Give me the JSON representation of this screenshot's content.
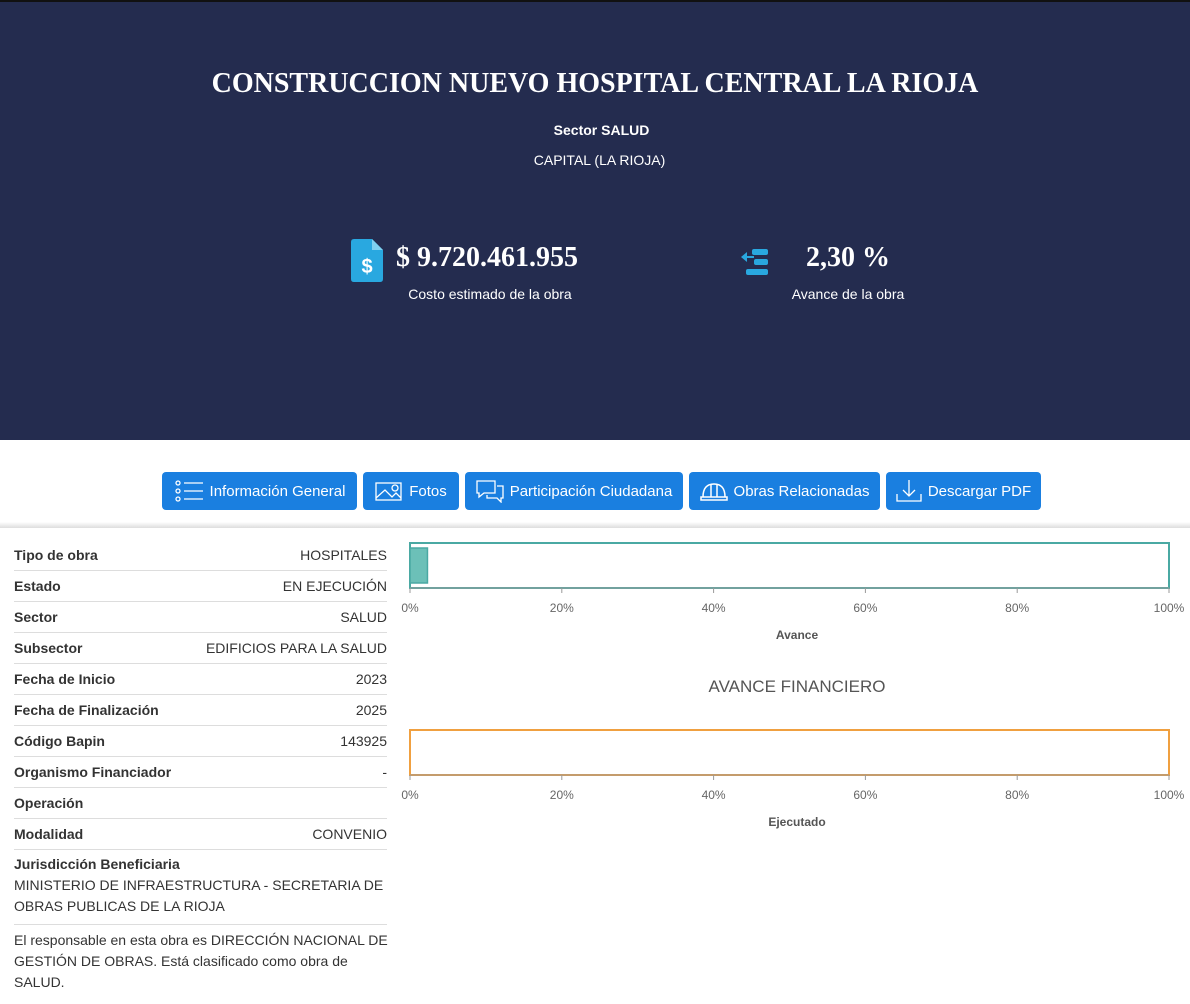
{
  "header": {
    "title": "CONSTRUCCION NUEVO HOSPITAL CENTRAL LA RIOJA",
    "sector": "Sector SALUD",
    "location": "CAPITAL (LA RIOJA)"
  },
  "stats": [
    {
      "value": "$ 9.720.461.955",
      "label": "Costo estimado de la obra"
    },
    {
      "value": "2,30 %",
      "label": "Avance de la obra"
    }
  ],
  "tabs": [
    "Información General",
    "Fotos",
    "Participación Ciudadana",
    "Obras Relacionadas",
    "Descargar PDF"
  ],
  "table": {
    "rows": [
      {
        "label": "Tipo de obra",
        "value": "HOSPITALES"
      },
      {
        "label": "Estado",
        "value": "EN EJECUCIÓN"
      },
      {
        "label": "Sector",
        "value": "SALUD"
      },
      {
        "label": "Subsector",
        "value": "EDIFICIOS PARA LA SALUD"
      },
      {
        "label": "Fecha de Inicio",
        "value": "2023"
      },
      {
        "label": "Fecha de Finalización",
        "value": "2025"
      },
      {
        "label": "Código Bapin",
        "value": "143925"
      },
      {
        "label": "Organismo Financiador",
        "value": "-"
      },
      {
        "label": "Operación"
      },
      {
        "label": "Modalidad",
        "value": "CONVENIO"
      }
    ],
    "jurisdiction": {
      "label": "Jurisdicción Beneficiaria",
      "value": "MINISTERIO DE INFRAESTRUCTURA - SECRETARIA DE OBRAS PUBLICAS DE LA RIOJA"
    },
    "note": "El responsable en esta obra es DIRECCIÓN NACIONAL DE GESTIÓN DE OBRAS. Está clasificado como obra de SALUD."
  },
  "chart_data": [
    {
      "type": "bar",
      "orientation": "horizontal",
      "xlabel": "Avance",
      "values": [
        2.3
      ],
      "color": "#6cc0b8",
      "border_color": "#4aa9a3",
      "xlim": [
        0,
        100
      ],
      "xticks": [
        {
          "value": 0,
          "label": "0%"
        },
        {
          "value": 20,
          "label": "20%"
        },
        {
          "value": 40,
          "label": "40%"
        },
        {
          "value": 60,
          "label": "60%"
        },
        {
          "value": 80,
          "label": "80%"
        },
        {
          "value": 100,
          "label": "100%"
        }
      ]
    },
    {
      "type": "bar",
      "orientation": "horizontal",
      "title": "AVANCE FINANCIERO",
      "xlabel": "Ejecutado",
      "values": [
        0
      ],
      "color": "#f5c07a",
      "border_color": "#f0a040",
      "xlim": [
        0,
        100
      ],
      "xticks": [
        {
          "value": 0,
          "label": "0%"
        },
        {
          "value": 20,
          "label": "20%"
        },
        {
          "value": 40,
          "label": "40%"
        },
        {
          "value": 60,
          "label": "60%"
        },
        {
          "value": 80,
          "label": "80%"
        },
        {
          "value": 100,
          "label": "100%"
        }
      ]
    }
  ]
}
